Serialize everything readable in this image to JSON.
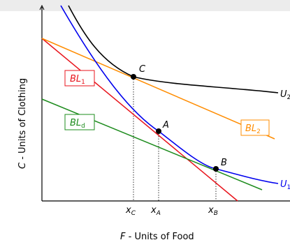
{
  "axes": {
    "y_label_var": "C",
    "y_label_text": " - Units of Clothing",
    "x_label_var": "F",
    "x_label_text": " - Units of Food"
  },
  "points": {
    "A": "A",
    "B": "B",
    "C": "C"
  },
  "ticks": {
    "xc_base": "x",
    "xc_sub": "C",
    "xa_base": "x",
    "xa_sub": "A",
    "xb_base": "x",
    "xb_sub": "B"
  },
  "curves": {
    "u2_base": "U",
    "u2_sub": "2",
    "u1_base": "U",
    "u1_sub": "1",
    "bl1_base": "BL",
    "bl1_sub": "1",
    "bld_base": "BL",
    "bld_sub": "d",
    "bl2_base": "BL",
    "bl2_sub": "2"
  },
  "colors": {
    "u2": "#000000",
    "u1": "#0000ee",
    "bl1": "#e8141c",
    "bl2": "#ff8c00",
    "bld": "#1e8c1e"
  }
}
